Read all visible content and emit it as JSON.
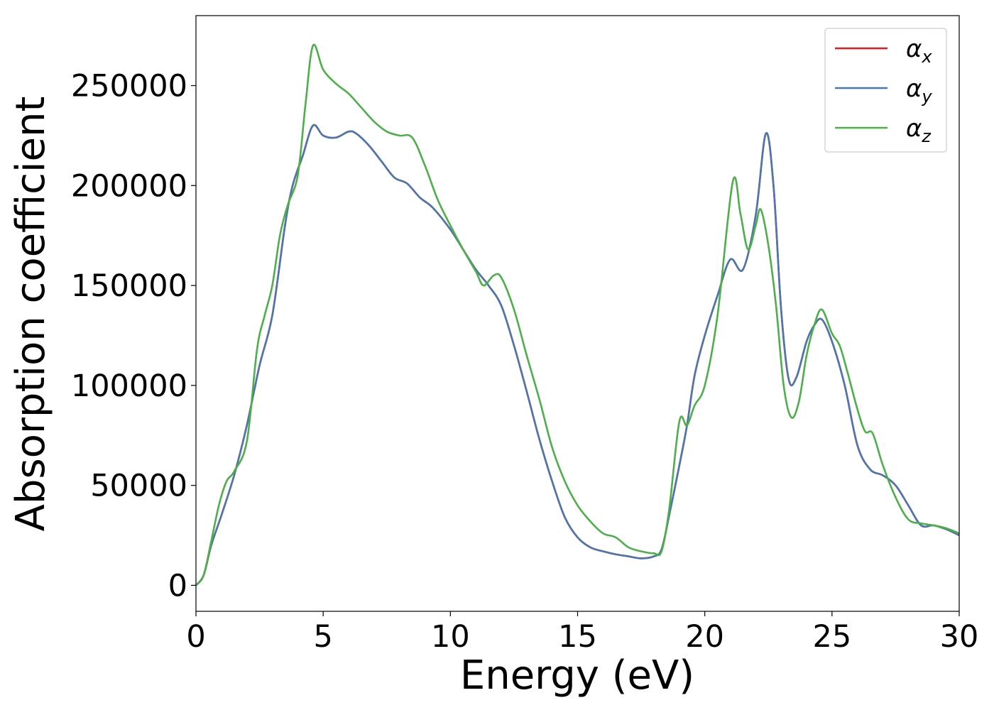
{
  "chart_data": {
    "type": "line",
    "xlabel": "Energy (eV)",
    "ylabel": "Absorption coefficient",
    "xlim": [
      0,
      30
    ],
    "ylim": [
      -13000,
      285000
    ],
    "xticks": [
      0,
      5,
      10,
      15,
      20,
      25,
      30
    ],
    "yticks": [
      0,
      50000,
      100000,
      150000,
      200000,
      250000
    ],
    "legend_position": "top-right",
    "grid": false,
    "series": [
      {
        "name": "α",
        "subscript": "x",
        "color": "#e41a1c",
        "x": [
          0,
          0.3,
          0.6,
          1.0,
          1.5,
          2.0,
          2.5,
          3.0,
          3.5,
          3.8,
          4.2,
          4.6,
          5.0,
          5.5,
          6.0,
          6.3,
          6.8,
          7.3,
          7.8,
          8.3,
          8.8,
          9.3,
          10.0,
          10.5,
          11.0,
          11.5,
          12.0,
          12.5,
          13.0,
          13.5,
          14.0,
          14.5,
          15.0,
          15.5,
          16.0,
          16.5,
          17.0,
          17.5,
          18.0,
          18.3,
          18.6,
          19.0,
          19.3,
          19.6,
          20.0,
          20.5,
          21.0,
          21.5,
          22.0,
          22.4,
          22.7,
          23.0,
          23.3,
          23.6,
          24.0,
          24.3,
          24.6,
          25.0,
          25.5,
          26.0,
          26.5,
          27.0,
          27.5,
          28.0,
          28.5,
          29.0,
          29.5,
          30.0
        ],
        "y": [
          0,
          5000,
          20000,
          35000,
          55000,
          80000,
          110000,
          135000,
          180000,
          200000,
          215000,
          230000,
          225000,
          224000,
          227000,
          226000,
          220000,
          212000,
          204000,
          201000,
          194000,
          189000,
          178000,
          168000,
          158000,
          150000,
          140000,
          120000,
          97000,
          73000,
          52000,
          34000,
          24000,
          19000,
          17000,
          15500,
          14500,
          13500,
          14500,
          18000,
          35000,
          60000,
          80000,
          105000,
          125000,
          145000,
          163000,
          158000,
          185000,
          226000,
          200000,
          138000,
          103000,
          104000,
          122000,
          130000,
          133000,
          122000,
          100000,
          70000,
          58000,
          55000,
          50000,
          40000,
          30000,
          30000,
          28000,
          25000
        ]
      },
      {
        "name": "α",
        "subscript": "y",
        "color": "#4a77b0",
        "x": [
          0,
          0.3,
          0.6,
          1.0,
          1.5,
          2.0,
          2.5,
          3.0,
          3.5,
          3.8,
          4.2,
          4.6,
          5.0,
          5.5,
          6.0,
          6.3,
          6.8,
          7.3,
          7.8,
          8.3,
          8.8,
          9.3,
          10.0,
          10.5,
          11.0,
          11.5,
          12.0,
          12.5,
          13.0,
          13.5,
          14.0,
          14.5,
          15.0,
          15.5,
          16.0,
          16.5,
          17.0,
          17.5,
          18.0,
          18.3,
          18.6,
          19.0,
          19.3,
          19.6,
          20.0,
          20.5,
          21.0,
          21.5,
          22.0,
          22.4,
          22.7,
          23.0,
          23.3,
          23.6,
          24.0,
          24.3,
          24.6,
          25.0,
          25.5,
          26.0,
          26.5,
          27.0,
          27.5,
          28.0,
          28.5,
          29.0,
          29.5,
          30.0
        ],
        "y": [
          0,
          5000,
          20000,
          35000,
          55000,
          80000,
          110000,
          135000,
          180000,
          200000,
          215000,
          230000,
          225000,
          224000,
          227000,
          226000,
          220000,
          212000,
          204000,
          201000,
          194000,
          189000,
          178000,
          168000,
          158000,
          150000,
          140000,
          120000,
          97000,
          73000,
          52000,
          34000,
          24000,
          19000,
          17000,
          15500,
          14500,
          13500,
          14500,
          18000,
          35000,
          60000,
          80000,
          105000,
          125000,
          145000,
          163000,
          158000,
          185000,
          226000,
          200000,
          138000,
          103000,
          104000,
          122000,
          130000,
          133000,
          122000,
          100000,
          70000,
          58000,
          55000,
          50000,
          40000,
          30000,
          30000,
          28000,
          25000
        ]
      },
      {
        "name": "α",
        "subscript": "z",
        "color": "#4daf4a",
        "x": [
          0,
          0.3,
          0.6,
          0.9,
          1.2,
          1.5,
          2.0,
          2.4,
          2.7,
          3.0,
          3.3,
          3.6,
          4.0,
          4.3,
          4.6,
          5.0,
          5.5,
          6.0,
          6.5,
          7.0,
          7.5,
          8.0,
          8.5,
          9.0,
          9.5,
          10.0,
          10.5,
          11.0,
          11.3,
          11.7,
          12.0,
          12.5,
          13.0,
          13.5,
          14.0,
          14.5,
          15.0,
          15.5,
          16.0,
          16.5,
          17.0,
          17.5,
          18.0,
          18.3,
          18.6,
          19.0,
          19.3,
          19.6,
          20.0,
          20.5,
          21.1,
          21.4,
          21.7,
          22.0,
          22.2,
          22.5,
          22.8,
          23.1,
          23.4,
          23.7,
          24.0,
          24.3,
          24.6,
          25.0,
          25.3,
          25.6,
          26.0,
          26.3,
          26.6,
          27.0,
          27.5,
          28.0,
          28.5,
          29.0,
          29.5,
          30.0
        ],
        "y": [
          0,
          5000,
          22000,
          40000,
          52000,
          57000,
          72000,
          118000,
          135000,
          150000,
          175000,
          190000,
          205000,
          240000,
          270000,
          258000,
          251000,
          246000,
          239000,
          232000,
          227000,
          225000,
          224000,
          210000,
          193000,
          180000,
          168000,
          157000,
          150000,
          155000,
          154000,
          138000,
          115000,
          93000,
          69000,
          52000,
          40000,
          32000,
          26000,
          24000,
          19000,
          17000,
          16000,
          17000,
          38000,
          82000,
          80000,
          90000,
          100000,
          135000,
          202000,
          186000,
          168000,
          180000,
          188000,
          170000,
          140000,
          100000,
          84000,
          92000,
          115000,
          130000,
          138000,
          126000,
          120000,
          107000,
          88000,
          77000,
          76000,
          60000,
          44000,
          33000,
          31000,
          30000,
          28500,
          26000
        ]
      }
    ]
  }
}
